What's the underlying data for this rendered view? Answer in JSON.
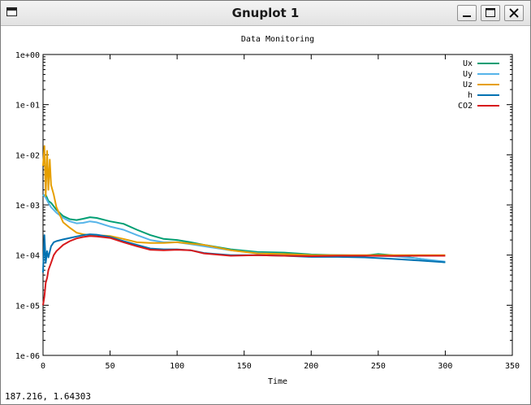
{
  "window": {
    "title": "Gnuplot 1"
  },
  "status": {
    "coords": "187.216,  1.64303"
  },
  "chart_data": {
    "type": "line",
    "title": "Data Monitoring",
    "xlabel": "Time",
    "ylabel": "",
    "xlim": [
      0,
      350
    ],
    "ylim": [
      1e-06,
      1
    ],
    "yscale": "log",
    "x_ticks": [
      "0",
      "50",
      "100",
      "150",
      "200",
      "250",
      "300",
      "350"
    ],
    "y_ticks": [
      "1e-06",
      "1e-05",
      "1e-04",
      "1e-03",
      "1e-02",
      "1e-01",
      "1e+00"
    ],
    "grid": false,
    "legend_position": "top-right",
    "series": [
      {
        "name": "Ux",
        "color": "#009e73",
        "x": [
          0,
          2,
          4,
          6,
          10,
          15,
          20,
          25,
          30,
          35,
          40,
          50,
          60,
          70,
          80,
          90,
          100,
          110,
          120,
          140,
          160,
          180,
          200,
          220,
          240,
          250,
          260,
          280,
          300
        ],
        "y": [
          0.0015,
          0.0016,
          0.0012,
          0.0011,
          0.0008,
          0.0006,
          0.00052,
          0.0005,
          0.00053,
          0.00057,
          0.00055,
          0.00047,
          0.00042,
          0.00032,
          0.00025,
          0.00021,
          0.0002,
          0.00018,
          0.00016,
          0.00013,
          0.000115,
          0.000112,
          0.000103,
          0.0001,
          9.8e-05,
          0.000105,
          0.0001,
          8.5e-05,
          7.2e-05
        ]
      },
      {
        "name": "Uy",
        "color": "#56b4e9",
        "x": [
          0,
          2,
          4,
          6,
          10,
          15,
          20,
          25,
          30,
          35,
          40,
          50,
          60,
          70,
          80,
          90,
          100,
          110,
          120,
          140,
          160,
          180,
          200,
          220,
          240,
          260,
          280,
          300
        ],
        "y": [
          0.0016,
          0.0014,
          0.0011,
          0.0009,
          0.0007,
          0.00055,
          0.00047,
          0.00043,
          0.00044,
          0.00047,
          0.00045,
          0.00037,
          0.00032,
          0.00025,
          0.0002,
          0.00018,
          0.00018,
          0.000165,
          0.00015,
          0.000125,
          0.00011,
          0.000105,
          0.0001,
          0.0001,
          9.8e-05,
          9.6e-05,
          8.5e-05,
          7.4e-05
        ]
      },
      {
        "name": "Uz",
        "color": "#e69f00",
        "x": [
          0,
          1,
          2,
          3,
          4,
          5,
          6,
          8,
          10,
          15,
          20,
          25,
          30,
          35,
          40,
          50,
          60,
          70,
          80,
          90,
          100,
          120,
          140,
          160,
          180,
          200,
          220,
          240,
          260,
          280,
          300
        ],
        "y": [
          0.006,
          0.015,
          0.0015,
          0.012,
          0.002,
          0.008,
          0.0025,
          0.0016,
          0.0009,
          0.00045,
          0.00035,
          0.00028,
          0.00026,
          0.00025,
          0.00025,
          0.00024,
          0.00021,
          0.00018,
          0.000175,
          0.000175,
          0.00018,
          0.00016,
          0.000125,
          0.000108,
          0.000105,
          0.0001,
          0.0001,
          0.0001,
          0.0001,
          0.0001,
          0.0001
        ]
      },
      {
        "name": "h",
        "color": "#0072b2",
        "x": [
          0,
          1,
          2,
          3,
          4,
          6,
          8,
          10,
          15,
          20,
          25,
          30,
          35,
          40,
          50,
          60,
          70,
          80,
          90,
          100,
          110,
          120,
          140,
          160,
          180,
          200,
          220,
          240,
          260,
          280,
          300
        ],
        "y": [
          4.5e-05,
          0.00025,
          7e-05,
          0.00012,
          9e-05,
          0.00015,
          0.00018,
          0.00019,
          0.000205,
          0.00022,
          0.000235,
          0.00025,
          0.00026,
          0.000255,
          0.00023,
          0.00019,
          0.00016,
          0.000135,
          0.00013,
          0.00013,
          0.000125,
          0.00011,
          0.0001,
          0.0001,
          9.7e-05,
          9.2e-05,
          9.2e-05,
          9e-05,
          8.4e-05,
          7.8e-05,
          7.2e-05
        ]
      },
      {
        "name": "CO2",
        "color": "#d7191c",
        "x": [
          0,
          1,
          2,
          3,
          4,
          6,
          8,
          10,
          15,
          20,
          25,
          30,
          35,
          40,
          50,
          60,
          70,
          80,
          90,
          100,
          110,
          120,
          140,
          160,
          180,
          200,
          220,
          240,
          260,
          280,
          300
        ],
        "y": [
          1e-05,
          1.5e-05,
          2.8e-05,
          3.5e-05,
          5e-05,
          7e-05,
          0.0001,
          0.00012,
          0.00016,
          0.00019,
          0.000215,
          0.00023,
          0.00024,
          0.000235,
          0.00022,
          0.00018,
          0.00015,
          0.000128,
          0.000125,
          0.000128,
          0.000125,
          0.000108,
          9.7e-05,
          0.0001,
          9.7e-05,
          9.5e-05,
          9.7e-05,
          9.7e-05,
          9.6e-05,
          9.7e-05,
          9.7e-05
        ]
      }
    ]
  }
}
